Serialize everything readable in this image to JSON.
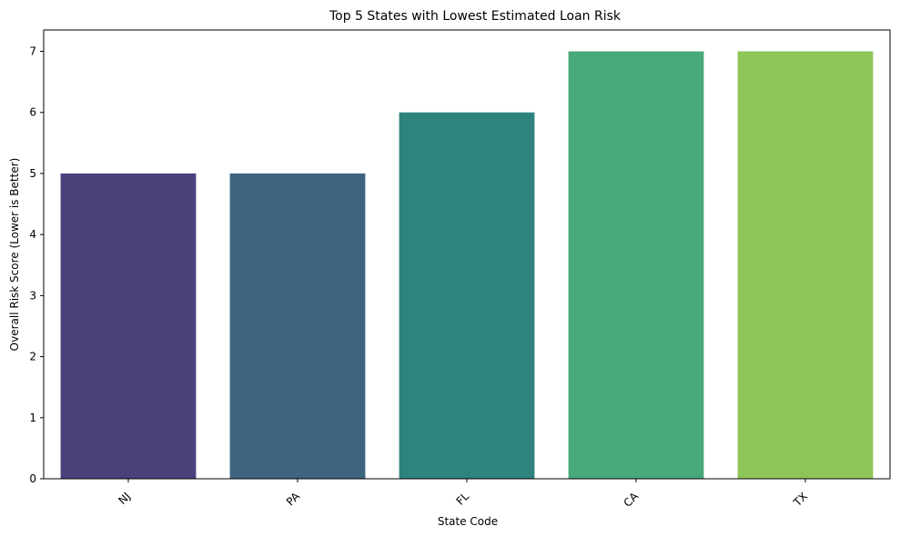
{
  "chart_data": {
    "type": "bar",
    "title": "Top 5 States with Lowest Estimated Loan Risk",
    "xlabel": "State Code",
    "ylabel": "Overall Risk Score (Lower is Better)",
    "categories": [
      "NJ",
      "PA",
      "FL",
      "CA",
      "TX"
    ],
    "values": [
      5,
      5,
      6,
      7,
      7
    ],
    "colors": [
      "#4a407a",
      "#3d657f",
      "#2f837d",
      "#48a97a",
      "#8ec557"
    ],
    "ylim": [
      0,
      7.35
    ],
    "yticks": [
      0,
      1,
      2,
      3,
      4,
      5,
      6,
      7
    ],
    "xtick_rotation": 45,
    "grid": false,
    "legend": false
  }
}
